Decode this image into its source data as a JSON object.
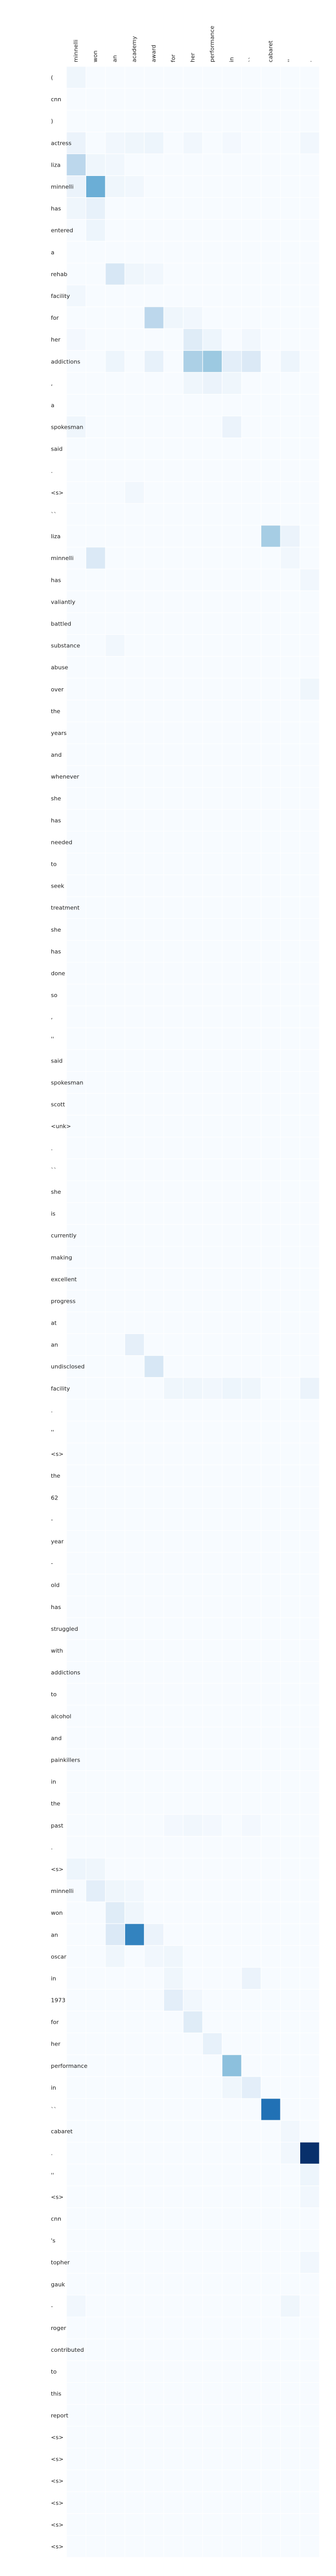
{
  "chart_data": {
    "type": "heatmap",
    "title": "",
    "xlabel": "",
    "ylabel": "",
    "colorscale": [
      "#f7fbff",
      "#deebf7",
      "#c6dbef",
      "#9ecae1",
      "#6baed6",
      "#4292c6",
      "#2171b5",
      "#08519c",
      "#08306b"
    ],
    "value_range": [
      0,
      1
    ],
    "columns": [
      "minnelli",
      "won",
      "an",
      "academy",
      "award",
      "for",
      "her",
      "performance",
      "in",
      "``",
      "cabaret",
      "''",
      "."
    ],
    "rows": [
      "(",
      "cnn",
      ")",
      "actress",
      "liza",
      "minnelli",
      "has",
      "entered",
      "a",
      "rehab",
      "facility",
      "for",
      "her",
      "addictions",
      ",",
      "a",
      "spokesman",
      "said",
      ".",
      "<s>",
      "``",
      "liza",
      "minnelli",
      "has",
      "valiantly",
      "battled",
      "substance",
      "abuse",
      "over",
      "the",
      "years",
      "and",
      "whenever",
      "she",
      "has",
      "needed",
      "to",
      "seek",
      "treatment",
      "she",
      "has",
      "done",
      "so",
      ",",
      "''",
      "said",
      "spokesman",
      "scott",
      "<unk>",
      ".",
      "``",
      "she",
      "is",
      "currently",
      "making",
      "excellent",
      "progress",
      "at",
      "an",
      "undisclosed",
      "facility",
      ".",
      "''",
      "<s>",
      "the",
      "62",
      "-",
      "year",
      "-",
      "old",
      "has",
      "struggled",
      "with",
      "addictions",
      "to",
      "alcohol",
      "and",
      "painkillers",
      "in",
      "the",
      "past",
      ".",
      "<s>",
      "minnelli",
      "won",
      "an",
      "oscar",
      "in",
      "1973",
      "for",
      "her",
      "performance",
      "in",
      "``",
      "cabaret",
      ".",
      "''",
      "<s>",
      "cnn",
      "'s",
      "topher",
      "gauk",
      "-",
      "roger",
      "contributed",
      "to",
      "this",
      "report",
      "<s>",
      "<s>",
      "<s>",
      "<s>",
      "<s>",
      "<s>"
    ],
    "cells": [
      [
        0,
        0,
        0.04
      ],
      [
        3,
        0,
        0.06
      ],
      [
        3,
        2,
        0.03
      ],
      [
        3,
        3,
        0.04
      ],
      [
        3,
        4,
        0.05
      ],
      [
        3,
        6,
        0.03
      ],
      [
        3,
        8,
        0.02
      ],
      [
        3,
        12,
        0.03
      ],
      [
        4,
        0,
        0.28
      ],
      [
        4,
        1,
        0.04
      ],
      [
        4,
        2,
        0.03
      ],
      [
        5,
        0,
        0.06
      ],
      [
        5,
        1,
        0.5
      ],
      [
        5,
        2,
        0.04
      ],
      [
        5,
        3,
        0.03
      ],
      [
        6,
        0,
        0.04
      ],
      [
        6,
        1,
        0.08
      ],
      [
        7,
        1,
        0.05
      ],
      [
        9,
        2,
        0.16
      ],
      [
        9,
        3,
        0.04
      ],
      [
        9,
        4,
        0.03
      ],
      [
        10,
        0,
        0.03
      ],
      [
        11,
        4,
        0.28
      ],
      [
        11,
        5,
        0.04
      ],
      [
        11,
        6,
        0.03
      ],
      [
        12,
        0,
        0.02
      ],
      [
        12,
        6,
        0.12
      ],
      [
        12,
        7,
        0.05
      ],
      [
        12,
        9,
        0.03
      ],
      [
        13,
        2,
        0.05
      ],
      [
        13,
        4,
        0.08
      ],
      [
        13,
        6,
        0.33
      ],
      [
        13,
        7,
        0.38
      ],
      [
        13,
        8,
        0.1
      ],
      [
        13,
        9,
        0.14
      ],
      [
        13,
        11,
        0.05
      ],
      [
        14,
        6,
        0.04
      ],
      [
        14,
        7,
        0.06
      ],
      [
        14,
        8,
        0.04
      ],
      [
        16,
        0,
        0.04
      ],
      [
        16,
        8,
        0.06
      ],
      [
        19,
        3,
        0.03
      ],
      [
        21,
        10,
        0.35
      ],
      [
        21,
        11,
        0.06
      ],
      [
        22,
        1,
        0.14
      ],
      [
        22,
        11,
        0.03
      ],
      [
        23,
        12,
        0.03
      ],
      [
        26,
        2,
        0.03
      ],
      [
        28,
        12,
        0.04
      ],
      [
        58,
        3,
        0.09
      ],
      [
        59,
        4,
        0.16
      ],
      [
        60,
        5,
        0.04
      ],
      [
        60,
        6,
        0.04
      ],
      [
        60,
        7,
        0.03
      ],
      [
        60,
        8,
        0.05
      ],
      [
        60,
        9,
        0.04
      ],
      [
        60,
        12,
        0.06
      ],
      [
        80,
        5,
        0.02
      ],
      [
        80,
        6,
        0.03
      ],
      [
        80,
        7,
        0.02
      ],
      [
        80,
        9,
        0.02
      ],
      [
        82,
        0,
        0.05
      ],
      [
        82,
        1,
        0.04
      ],
      [
        83,
        1,
        0.1
      ],
      [
        83,
        2,
        0.04
      ],
      [
        83,
        3,
        0.03
      ],
      [
        84,
        2,
        0.12
      ],
      [
        84,
        3,
        0.04
      ],
      [
        85,
        2,
        0.14
      ],
      [
        85,
        3,
        0.68
      ],
      [
        85,
        4,
        0.06
      ],
      [
        86,
        2,
        0.04
      ],
      [
        86,
        4,
        0.03
      ],
      [
        86,
        5,
        0.04
      ],
      [
        87,
        5,
        0.04
      ],
      [
        87,
        9,
        0.06
      ],
      [
        88,
        5,
        0.1
      ],
      [
        88,
        6,
        0.03
      ],
      [
        89,
        6,
        0.12
      ],
      [
        90,
        7,
        0.08
      ],
      [
        91,
        8,
        0.42
      ],
      [
        92,
        8,
        0.04
      ],
      [
        92,
        9,
        0.1
      ],
      [
        93,
        10,
        0.75
      ],
      [
        94,
        11,
        0.03
      ],
      [
        95,
        11,
        0.03
      ],
      [
        95,
        12,
        1.0
      ],
      [
        96,
        12,
        0.05
      ],
      [
        97,
        12,
        0.03
      ],
      [
        100,
        12,
        0.03
      ],
      [
        102,
        0,
        0.03
      ],
      [
        102,
        11,
        0.04
      ]
    ]
  }
}
